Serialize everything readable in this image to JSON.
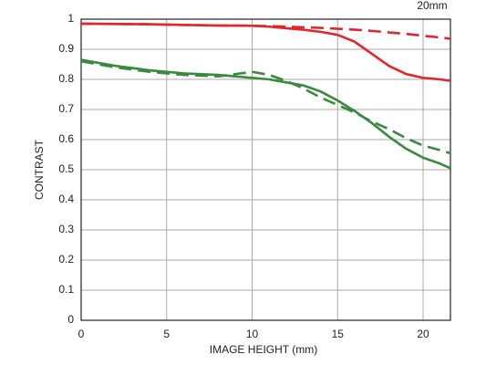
{
  "chart_data": {
    "type": "line",
    "title": "20mm",
    "xlabel": "IMAGE HEIGHT (mm)",
    "ylabel": "CONTRAST",
    "x": [
      0,
      2,
      4,
      6,
      8,
      10,
      11,
      12,
      13,
      14,
      15,
      16,
      17,
      18,
      19,
      20,
      21,
      21.6
    ],
    "series": [
      {
        "color": "#e3262b",
        "dashed": false,
        "values": [
          0.985,
          0.984,
          0.983,
          0.981,
          0.979,
          0.978,
          0.975,
          0.97,
          0.965,
          0.958,
          0.948,
          0.925,
          0.885,
          0.845,
          0.818,
          0.805,
          0.8,
          0.795
        ]
      },
      {
        "color": "#e3262b",
        "dashed": true,
        "values": [
          0.985,
          0.984,
          0.983,
          0.981,
          0.979,
          0.978,
          0.977,
          0.975,
          0.973,
          0.971,
          0.968,
          0.965,
          0.961,
          0.956,
          0.951,
          0.945,
          0.939,
          0.935
        ]
      },
      {
        "color": "#3a8a3e",
        "dashed": false,
        "values": [
          0.865,
          0.845,
          0.83,
          0.82,
          0.815,
          0.805,
          0.8,
          0.79,
          0.78,
          0.76,
          0.73,
          0.695,
          0.655,
          0.61,
          0.57,
          0.54,
          0.52,
          0.505
        ]
      },
      {
        "color": "#3a8a3e",
        "dashed": true,
        "values": [
          0.86,
          0.84,
          0.825,
          0.815,
          0.81,
          0.825,
          0.815,
          0.795,
          0.77,
          0.74,
          0.715,
          0.69,
          0.66,
          0.635,
          0.605,
          0.58,
          0.565,
          0.555
        ]
      }
    ],
    "xlim": [
      0,
      21.6
    ],
    "xticks": [
      0,
      5,
      10,
      15,
      20
    ],
    "ylim": [
      0,
      1
    ],
    "yticks": [
      0,
      0.1,
      0.2,
      0.3,
      0.4,
      0.5,
      0.6,
      0.7,
      0.8,
      0.9,
      1
    ],
    "grid": true
  }
}
